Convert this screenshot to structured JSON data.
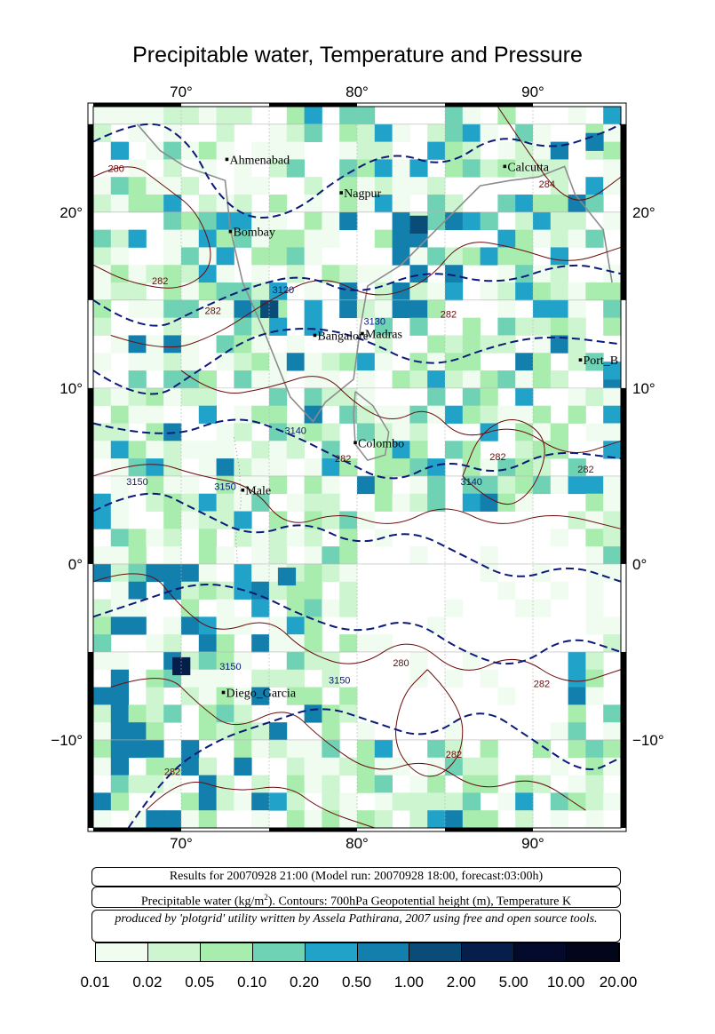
{
  "title": "Precipitable water, Temperature and Pressure",
  "lon_labels": [
    "70°",
    "80°",
    "90°"
  ],
  "lat_labels": [
    "20°",
    "10°",
    "0°",
    "−10°"
  ],
  "cities": [
    {
      "name": "Ahmenabad",
      "lon": 72.6,
      "lat": 23.0
    },
    {
      "name": "Nagpur",
      "lon": 79.1,
      "lat": 21.1
    },
    {
      "name": "Calcutta",
      "lon": 88.4,
      "lat": 22.6
    },
    {
      "name": "Bombay",
      "lon": 72.8,
      "lat": 18.9
    },
    {
      "name": "Bangalore",
      "lon": 77.6,
      "lat": 13.0
    },
    {
      "name": "Madras",
      "lon": 80.3,
      "lat": 13.1
    },
    {
      "name": "Port_B",
      "lon": 92.7,
      "lat": 11.6
    },
    {
      "name": "Colombo",
      "lon": 79.9,
      "lat": 6.9
    },
    {
      "name": "Male",
      "lon": 73.5,
      "lat": 4.2
    },
    {
      "name": "Diego_Garcia",
      "lon": 72.4,
      "lat": -7.3
    }
  ],
  "contour_labels": {
    "geopotential": [
      "3120",
      "3130",
      "3140",
      "3140",
      "3150",
      "3150",
      "3150",
      "3150"
    ],
    "temperature": [
      "280",
      "282",
      "282",
      "282",
      "282",
      "282",
      "282",
      "280",
      "282",
      "282",
      "282",
      "284"
    ]
  },
  "info": {
    "results": "Results for 20070928 21:00 (Model run: 20070928 18:00, forecast:03:00h)",
    "variable_prefix": "Precipitable water (kg/m",
    "variable_sup": "2",
    "variable_suffix": ").  Contours: 700hPa Geopotential height (m), Temperature K",
    "credit": "produced by 'plotgrid' utility written by Assela Pathirana, 2007 using free and open source tools."
  },
  "colorbar": {
    "labels": [
      "0.01",
      "0.02",
      "0.05",
      "0.10",
      "0.20",
      "0.50",
      "1.00",
      "2.00",
      "5.00",
      "10.00",
      "20.00"
    ],
    "colors": [
      "#f0fcf0",
      "#cdf5cf",
      "#a8ecae",
      "#6fd2b4",
      "#21a3c9",
      "#127fad",
      "#0a4c78",
      "#061e4a",
      "#040a2c",
      "#03051a"
    ]
  },
  "colors": {
    "geopotential": "#0c1a7a",
    "temperature": "#6a0c0c",
    "coast": "#8c8c8c"
  }
}
